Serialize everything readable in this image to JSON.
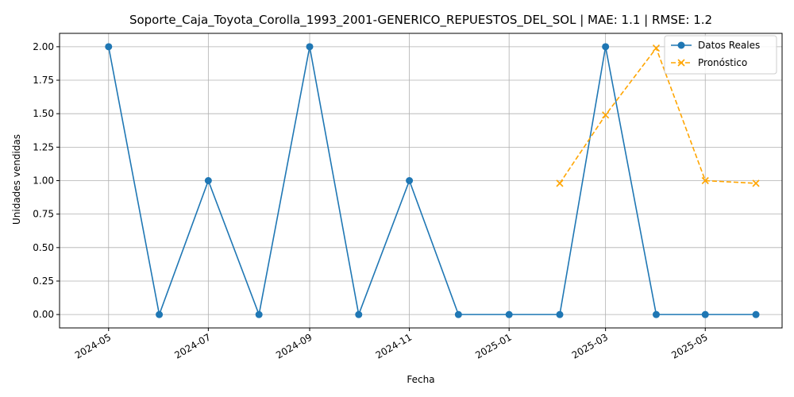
{
  "chart_data": {
    "type": "line",
    "title": "Soporte_Caja_Toyota_Corolla_1993_2001-GENERICO_REPUESTOS_DEL_SOL | MAE: 1.1 | RMSE: 1.2",
    "xlabel": "Fecha",
    "ylabel": "Unidades vendidas",
    "ylim": [
      -0.1,
      2.1
    ],
    "xlim": [
      "2024-04-01",
      "2025-06-17"
    ],
    "grid": true,
    "legend_position": "top-right",
    "x_ticks": [
      "2024-05",
      "2024-07",
      "2024-09",
      "2024-11",
      "2025-01",
      "2025-03",
      "2025-05"
    ],
    "y_ticks": [
      "0.00",
      "0.25",
      "0.50",
      "0.75",
      "1.00",
      "1.25",
      "1.50",
      "1.75",
      "2.00"
    ],
    "series": [
      {
        "name": "Datos Reales",
        "color": "#1f77b4",
        "style": "solid",
        "marker": "circle",
        "points": [
          {
            "x": "2024-05-01",
            "y": 2
          },
          {
            "x": "2024-06-01",
            "y": 0
          },
          {
            "x": "2024-07-01",
            "y": 1
          },
          {
            "x": "2024-08-01",
            "y": 0
          },
          {
            "x": "2024-09-01",
            "y": 2
          },
          {
            "x": "2024-10-01",
            "y": 0
          },
          {
            "x": "2024-11-01",
            "y": 1
          },
          {
            "x": "2024-12-01",
            "y": 0
          },
          {
            "x": "2025-01-01",
            "y": 0
          },
          {
            "x": "2025-02-01",
            "y": 0
          },
          {
            "x": "2025-03-01",
            "y": 2
          },
          {
            "x": "2025-04-01",
            "y": 0
          },
          {
            "x": "2025-05-01",
            "y": 0
          },
          {
            "x": "2025-06-01",
            "y": 0
          }
        ]
      },
      {
        "name": "Pronóstico",
        "color": "#ffa500",
        "style": "dashed",
        "marker": "x",
        "points": [
          {
            "x": "2025-02-01",
            "y": 0.98
          },
          {
            "x": "2025-03-01",
            "y": 1.49
          },
          {
            "x": "2025-04-01",
            "y": 1.99
          },
          {
            "x": "2025-05-01",
            "y": 1.0
          },
          {
            "x": "2025-06-01",
            "y": 0.98
          }
        ]
      }
    ]
  }
}
